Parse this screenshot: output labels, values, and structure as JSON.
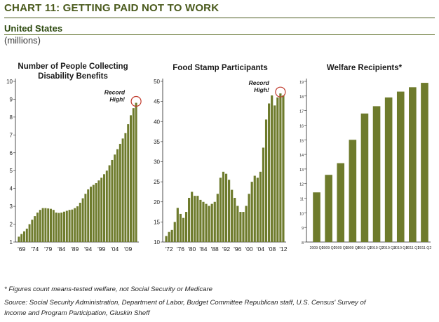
{
  "header": {
    "title": "CHART 11: GETTING PAID NOT TO WORK",
    "region": "United States",
    "units": "(millions)"
  },
  "colors": {
    "bar": "#6e7b2c",
    "accent": "#4a5a1c",
    "circle": "#c0392b"
  },
  "footnotes": {
    "note": "* Figures count means-tested welfare, not Social Security or Medicare",
    "source_line1": "Source: Social Security Administration, Department of Labor, Budget Committee Republican staff, U.S. Census' Survey of",
    "source_line2": "Income and Program Participation, Gluskin Sheff"
  },
  "chart_data": [
    {
      "type": "bar",
      "title": "Number of People Collecting\nDisability Benefits",
      "ylim": [
        1,
        10
      ],
      "yticks": [
        1,
        2,
        3,
        4,
        5,
        6,
        7,
        8,
        9,
        10
      ],
      "xtick_labels": [
        "'69",
        "'74",
        "'79",
        "'84",
        "'89",
        "'94",
        "'99",
        "'04",
        "'09"
      ],
      "xtick_years": [
        1969,
        1974,
        1979,
        1984,
        1989,
        1994,
        1999,
        2004,
        2009
      ],
      "annotation": "Record\nHigh!",
      "x": [
        1968,
        1969,
        1970,
        1971,
        1972,
        1973,
        1974,
        1975,
        1976,
        1977,
        1978,
        1979,
        1980,
        1981,
        1982,
        1983,
        1984,
        1985,
        1986,
        1987,
        1988,
        1989,
        1990,
        1991,
        1992,
        1993,
        1994,
        1995,
        1996,
        1997,
        1998,
        1999,
        2000,
        2001,
        2002,
        2003,
        2004,
        2005,
        2006,
        2007,
        2008,
        2009,
        2010,
        2011,
        2012
      ],
      "values": [
        1.3,
        1.45,
        1.6,
        1.75,
        2.0,
        2.25,
        2.45,
        2.65,
        2.8,
        2.9,
        2.9,
        2.88,
        2.86,
        2.8,
        2.65,
        2.63,
        2.65,
        2.7,
        2.75,
        2.8,
        2.82,
        2.9,
        3.0,
        3.2,
        3.45,
        3.7,
        3.95,
        4.1,
        4.2,
        4.3,
        4.45,
        4.6,
        4.8,
        5.0,
        5.3,
        5.6,
        5.9,
        6.2,
        6.5,
        6.8,
        7.1,
        7.6,
        8.1,
        8.5,
        8.8
      ]
    },
    {
      "type": "bar",
      "title": "Food Stamp Participants",
      "ylim": [
        10,
        50
      ],
      "yticks": [
        10,
        15,
        20,
        25,
        30,
        35,
        40,
        45,
        50
      ],
      "xtick_labels": [
        "'72",
        "'76",
        "'80",
        "'84",
        "'88",
        "'92",
        "'96",
        "'00",
        "'04",
        "'08",
        "'12"
      ],
      "xtick_years": [
        1972,
        1976,
        1980,
        1984,
        1988,
        1992,
        1996,
        2000,
        2004,
        2008,
        2012
      ],
      "annotation": "Record\nHigh!",
      "x": [
        1971,
        1972,
        1973,
        1974,
        1975,
        1976,
        1977,
        1978,
        1979,
        1980,
        1981,
        1982,
        1983,
        1984,
        1985,
        1986,
        1987,
        1988,
        1989,
        1990,
        1991,
        1992,
        1993,
        1994,
        1995,
        1996,
        1997,
        1998,
        1999,
        2000,
        2001,
        2002,
        2003,
        2004,
        2005,
        2006,
        2007,
        2008,
        2009,
        2010,
        2011,
        2012
      ],
      "values": [
        11.5,
        12.5,
        13.0,
        15.0,
        18.5,
        17.0,
        16.0,
        17.5,
        21.0,
        22.5,
        21.5,
        21.5,
        20.5,
        20.0,
        19.5,
        19.0,
        19.5,
        20.0,
        22.0,
        26.0,
        27.5,
        27.0,
        25.5,
        23.0,
        21.0,
        19.0,
        17.5,
        17.5,
        19.0,
        22.0,
        25.0,
        26.5,
        26.0,
        27.5,
        33.5,
        40.5,
        44.5,
        46.5,
        44.0,
        46.0,
        47.0,
        46.5
      ]
    },
    {
      "type": "bar",
      "title": "Welfare Recipients*",
      "ylim": [
        8,
        19
      ],
      "yticks": [
        8,
        9,
        10,
        11,
        12,
        13,
        14,
        15,
        16,
        17,
        18,
        19
      ],
      "categories": [
        "2009 Q1",
        "2009 Q2",
        "2009 Q3",
        "2009 Q4",
        "2010 Q1",
        "2010 Q2",
        "2010 Q3",
        "2010 Q4",
        "2011 Q1",
        "2011 Q2"
      ],
      "values": [
        11.4,
        12.6,
        13.4,
        15.0,
        16.8,
        17.3,
        17.9,
        18.3,
        18.6,
        18.9
      ]
    }
  ]
}
